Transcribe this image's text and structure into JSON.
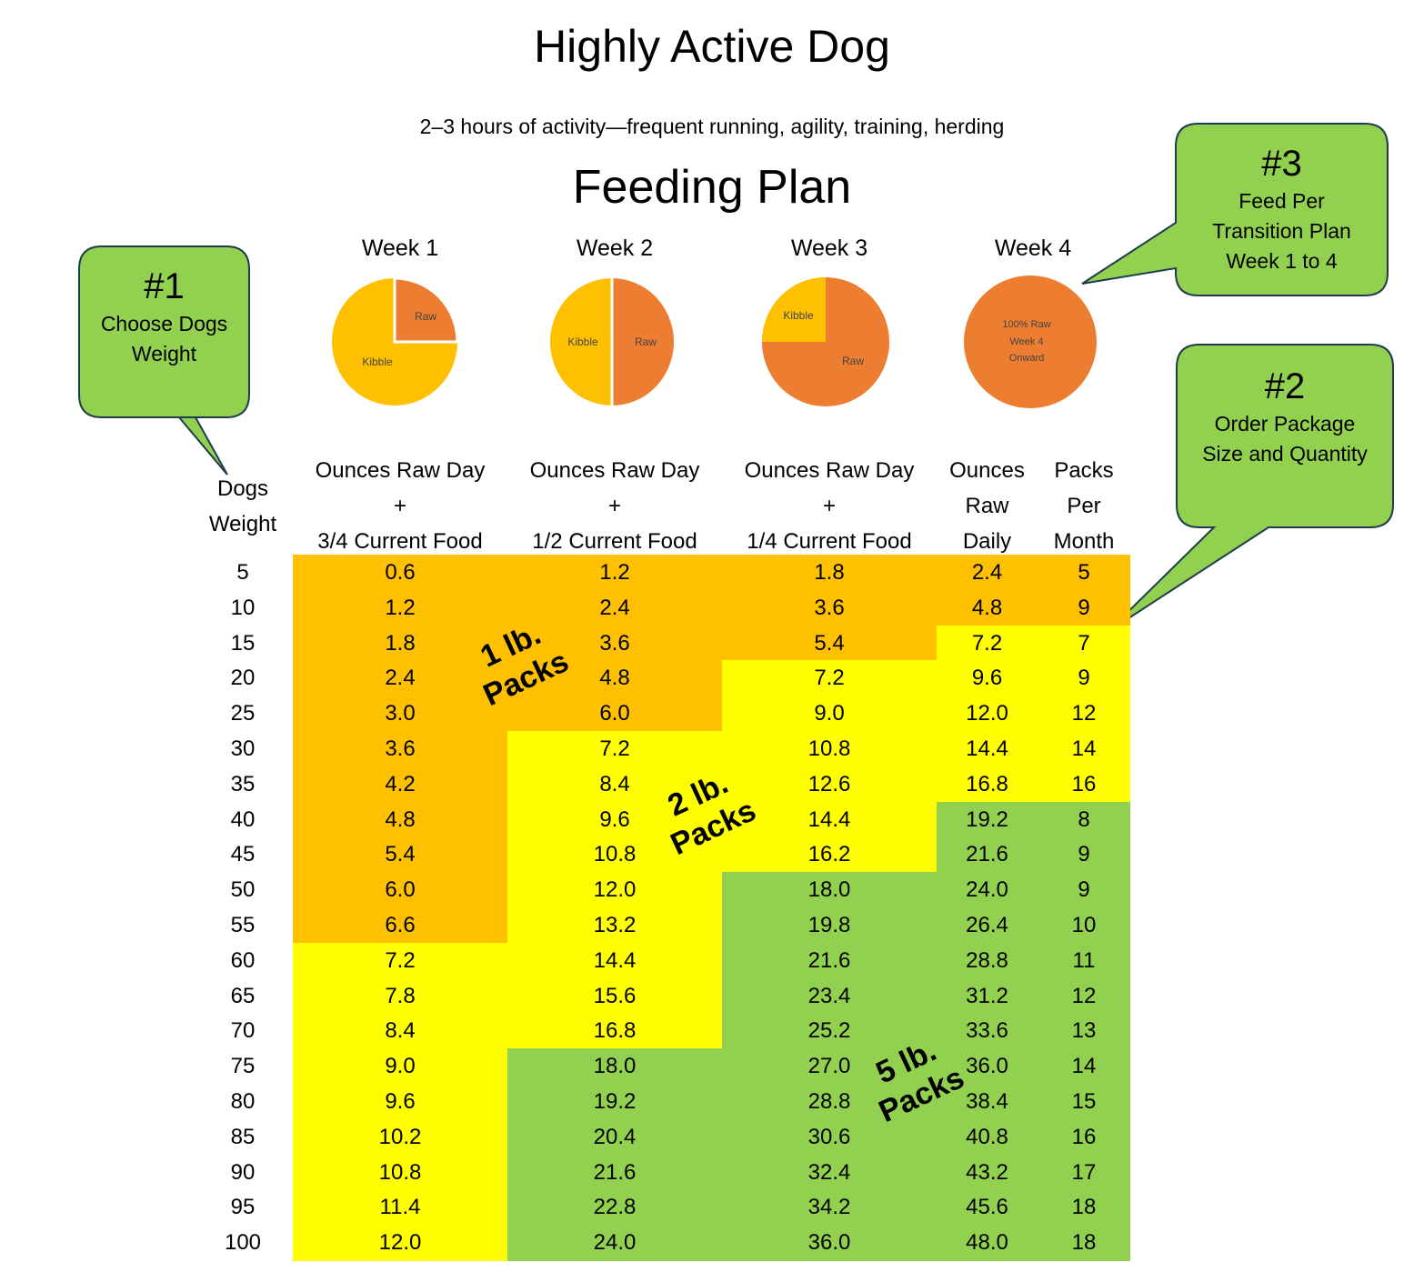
{
  "title": "Highly Active Dog",
  "subtitle": "2–3 hours of activity—frequent running, agility, training, herding",
  "plan_title": "Feeding Plan",
  "colors": {
    "orange": "#FFC000",
    "yellow": "#FFFF00",
    "green": "#92D050",
    "raw": "#ED7D31",
    "kibble": "#FFC000",
    "callout": "#92D050"
  },
  "weeks": [
    {
      "label": "Week 1",
      "raw_fraction": 0.25,
      "labels": [
        "Raw",
        "Kibble"
      ]
    },
    {
      "label": "Week 2",
      "raw_fraction": 0.5,
      "labels": [
        "Raw",
        "Kibble"
      ]
    },
    {
      "label": "Week 3",
      "raw_fraction": 0.75,
      "labels": [
        "Raw",
        "Kibble"
      ]
    },
    {
      "label": "Week 4",
      "raw_fraction": 1.0,
      "labels": [
        "100% Raw",
        "Week 4",
        "Onward"
      ]
    }
  ],
  "callouts": {
    "c1": {
      "num": "#1",
      "line1": "Choose Dogs",
      "line2": "Weight"
    },
    "c2": {
      "num": "#2",
      "line1": "Order Package",
      "line2": "Size and Quantity"
    },
    "c3": {
      "num": "#3",
      "line1": "Feed Per",
      "line2": "Transition Plan",
      "line3": "Week 1 to 4"
    }
  },
  "headers": {
    "weight": [
      "Dogs",
      "Weight"
    ],
    "col1": [
      "Ounces Raw Day",
      "+",
      "3/4 Current Food"
    ],
    "col2": [
      "Ounces Raw Day",
      "+",
      "1/2 Current Food"
    ],
    "col3": [
      "Ounces Raw Day",
      "+",
      "1/4 Current Food"
    ],
    "col4": [
      "Ounces",
      "Raw",
      "Daily"
    ],
    "col5": [
      "Packs",
      "Per",
      "Month"
    ]
  },
  "pack_labels": {
    "p1": [
      "1 lb.",
      "Packs"
    ],
    "p2": [
      "2 lb.",
      "Packs"
    ],
    "p5": [
      "5 lb.",
      "Packs"
    ]
  },
  "rows": [
    {
      "w": "5",
      "c": [
        "0.6",
        "1.2",
        "1.8",
        "2.4",
        "5"
      ],
      "z": [
        "o",
        "o",
        "o",
        "o",
        "o"
      ]
    },
    {
      "w": "10",
      "c": [
        "1.2",
        "2.4",
        "3.6",
        "4.8",
        "9"
      ],
      "z": [
        "o",
        "o",
        "o",
        "o",
        "o"
      ]
    },
    {
      "w": "15",
      "c": [
        "1.8",
        "3.6",
        "5.4",
        "7.2",
        "7"
      ],
      "z": [
        "o",
        "o",
        "o",
        "y",
        "y"
      ]
    },
    {
      "w": "20",
      "c": [
        "2.4",
        "4.8",
        "7.2",
        "9.6",
        "9"
      ],
      "z": [
        "o",
        "o",
        "y",
        "y",
        "y"
      ]
    },
    {
      "w": "25",
      "c": [
        "3.0",
        "6.0",
        "9.0",
        "12.0",
        "12"
      ],
      "z": [
        "o",
        "o",
        "y",
        "y",
        "y"
      ]
    },
    {
      "w": "30",
      "c": [
        "3.6",
        "7.2",
        "10.8",
        "14.4",
        "14"
      ],
      "z": [
        "o",
        "y",
        "y",
        "y",
        "y"
      ]
    },
    {
      "w": "35",
      "c": [
        "4.2",
        "8.4",
        "12.6",
        "16.8",
        "16"
      ],
      "z": [
        "o",
        "y",
        "y",
        "y",
        "y"
      ]
    },
    {
      "w": "40",
      "c": [
        "4.8",
        "9.6",
        "14.4",
        "19.2",
        "8"
      ],
      "z": [
        "o",
        "y",
        "y",
        "g",
        "g"
      ]
    },
    {
      "w": "45",
      "c": [
        "5.4",
        "10.8",
        "16.2",
        "21.6",
        "9"
      ],
      "z": [
        "o",
        "y",
        "y",
        "g",
        "g"
      ]
    },
    {
      "w": "50",
      "c": [
        "6.0",
        "12.0",
        "18.0",
        "24.0",
        "9"
      ],
      "z": [
        "o",
        "y",
        "g",
        "g",
        "g"
      ]
    },
    {
      "w": "55",
      "c": [
        "6.6",
        "13.2",
        "19.8",
        "26.4",
        "10"
      ],
      "z": [
        "o",
        "y",
        "g",
        "g",
        "g"
      ]
    },
    {
      "w": "60",
      "c": [
        "7.2",
        "14.4",
        "21.6",
        "28.8",
        "11"
      ],
      "z": [
        "y",
        "y",
        "g",
        "g",
        "g"
      ]
    },
    {
      "w": "65",
      "c": [
        "7.8",
        "15.6",
        "23.4",
        "31.2",
        "12"
      ],
      "z": [
        "y",
        "y",
        "g",
        "g",
        "g"
      ]
    },
    {
      "w": "70",
      "c": [
        "8.4",
        "16.8",
        "25.2",
        "33.6",
        "13"
      ],
      "z": [
        "y",
        "y",
        "g",
        "g",
        "g"
      ]
    },
    {
      "w": "75",
      "c": [
        "9.0",
        "18.0",
        "27.0",
        "36.0",
        "14"
      ],
      "z": [
        "y",
        "g",
        "g",
        "g",
        "g"
      ]
    },
    {
      "w": "80",
      "c": [
        "9.6",
        "19.2",
        "28.8",
        "38.4",
        "15"
      ],
      "z": [
        "y",
        "g",
        "g",
        "g",
        "g"
      ]
    },
    {
      "w": "85",
      "c": [
        "10.2",
        "20.4",
        "30.6",
        "40.8",
        "16"
      ],
      "z": [
        "y",
        "g",
        "g",
        "g",
        "g"
      ]
    },
    {
      "w": "90",
      "c": [
        "10.8",
        "21.6",
        "32.4",
        "43.2",
        "17"
      ],
      "z": [
        "y",
        "g",
        "g",
        "g",
        "g"
      ]
    },
    {
      "w": "95",
      "c": [
        "11.4",
        "22.8",
        "34.2",
        "45.6",
        "18"
      ],
      "z": [
        "y",
        "g",
        "g",
        "g",
        "g"
      ]
    },
    {
      "w": "100",
      "c": [
        "12.0",
        "24.0",
        "36.0",
        "48.0",
        "18"
      ],
      "z": [
        "y",
        "g",
        "g",
        "g",
        "g"
      ]
    }
  ]
}
